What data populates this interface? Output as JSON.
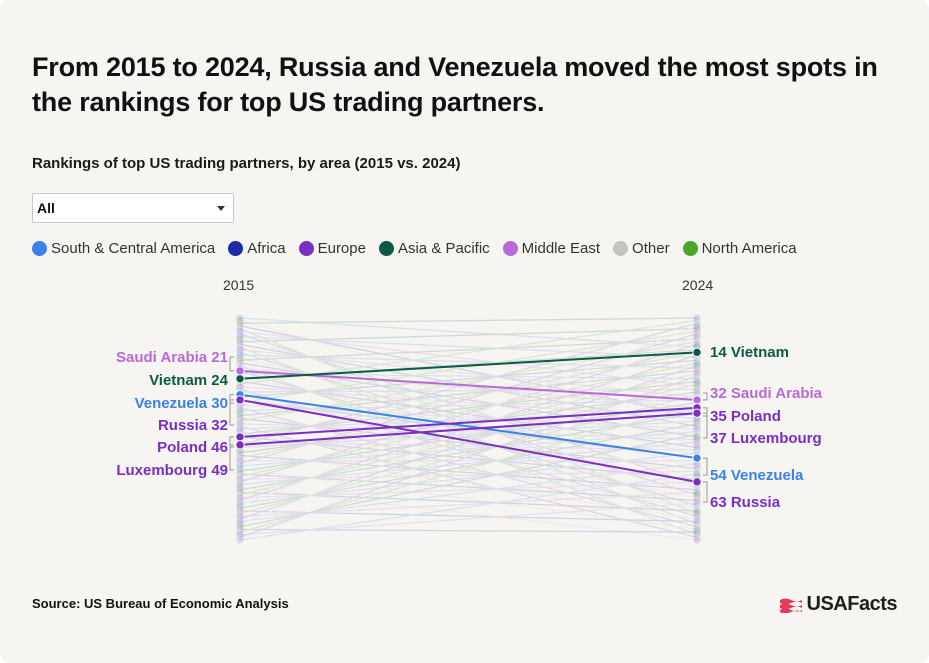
{
  "header": {
    "title": "From 2015 to 2024, Russia and Venezuela moved the most spots in the rankings for top US trading partners.",
    "subtitle": "Rankings of top US trading partners, by area (2015 vs. 2024)"
  },
  "filter": {
    "selected": "All"
  },
  "legend": [
    {
      "name": "South & Central America",
      "color": "#3b82e8"
    },
    {
      "name": "Africa",
      "color": "#1e2aa6"
    },
    {
      "name": "Europe",
      "color": "#7a2fc0"
    },
    {
      "name": "Asia & Pacific",
      "color": "#0b5a45"
    },
    {
      "name": "Middle East",
      "color": "#b96ad9"
    },
    {
      "name": "Other",
      "color": "#c4c4c0"
    },
    {
      "name": "North America",
      "color": "#4aa62a"
    }
  ],
  "chart_data": {
    "type": "slope",
    "x_labels": [
      "2015",
      "2024"
    ],
    "rank_range": [
      1,
      85
    ],
    "highlighted": [
      {
        "name": "Saudi Arabia",
        "area": "Middle East",
        "rank_2015": 21,
        "rank_2024": 32,
        "label_2015": "Saudi Arabia 21",
        "label_2024": "32 Saudi Arabia",
        "color": "#b96ad9"
      },
      {
        "name": "Vietnam",
        "area": "Asia & Pacific",
        "rank_2015": 24,
        "rank_2024": 14,
        "label_2015": "Vietnam 24",
        "label_2024": "14 Vietnam",
        "color": "#0b5a45"
      },
      {
        "name": "Venezuela",
        "area": "South & Central America",
        "rank_2015": 30,
        "rank_2024": 54,
        "label_2015": "Venezuela 30",
        "label_2024": "54 Venezuela",
        "color": "#3b82e8"
      },
      {
        "name": "Russia",
        "area": "Europe",
        "rank_2015": 32,
        "rank_2024": 63,
        "label_2015": "Russia 32",
        "label_2024": "63 Russia",
        "color": "#7a2fc0"
      },
      {
        "name": "Poland",
        "area": "Europe",
        "rank_2015": 46,
        "rank_2024": 35,
        "label_2015": "Poland 46",
        "label_2024": "35 Poland",
        "color": "#7a2fc0"
      },
      {
        "name": "Luxembourg",
        "area": "Europe",
        "rank_2015": 49,
        "rank_2024": 37,
        "label_2015": "Luxembourg 49",
        "label_2024": "37 Luxembourg",
        "color": "#7a2fc0"
      }
    ]
  },
  "footer": {
    "source": "Source: US Bureau of Economic Analysis",
    "brand": "USAFacts"
  }
}
